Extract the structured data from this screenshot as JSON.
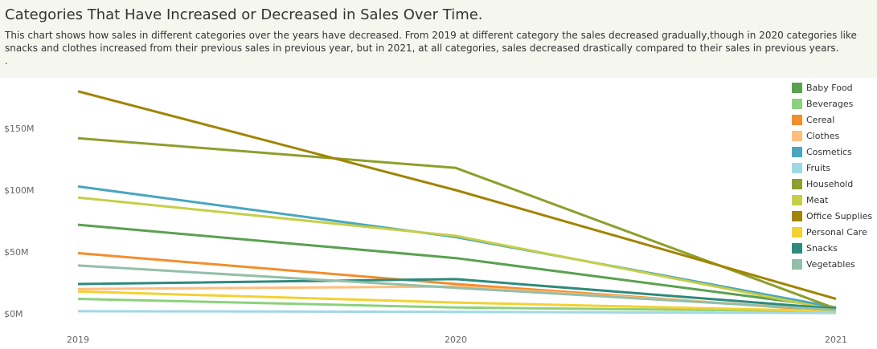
{
  "header": {
    "title": "Categories That Have Increased or Decreased in Sales Over Time.",
    "subtitle": "This chart shows how sales in different categories over the years have decreased. From 2019 at different category the sales decreased gradually,though in 2020 categories like snacks and clothes increased from their previous sales in previous year, but in 2021, at all categories, sales decreased drastically compared to their sales in previous years.",
    "note": "."
  },
  "chart_data": {
    "type": "line",
    "title": "Categories That Have Increased or Decreased in Sales Over Time.",
    "x": [
      "2019",
      "2020",
      "2021"
    ],
    "ylim": [
      0,
      180
    ],
    "yticks": [
      0,
      50,
      100,
      150
    ],
    "ytick_labels": [
      "$0M",
      "$50M",
      "$100M",
      "$150M"
    ],
    "grid": false,
    "legend": "right",
    "series": [
      {
        "name": "Baby Food",
        "color": "#59a14f",
        "values": [
          72,
          45,
          5
        ]
      },
      {
        "name": "Beverages",
        "color": "#8cd17d",
        "values": [
          12,
          5,
          2
        ]
      },
      {
        "name": "Cereal",
        "color": "#f28e2b",
        "values": [
          49,
          24,
          2
        ]
      },
      {
        "name": "Clothes",
        "color": "#ffbe7d",
        "values": [
          20,
          22,
          3
        ]
      },
      {
        "name": "Cosmetics",
        "color": "#499894",
        "values": [
          103,
          62,
          5
        ],
        "display_color": "#4aa6bf"
      },
      {
        "name": "Fruits",
        "color": "#a0d8e8",
        "values": [
          2,
          1.5,
          0.5
        ]
      },
      {
        "name": "Household",
        "color": "#8f9e2d",
        "values": [
          142,
          118,
          4
        ]
      },
      {
        "name": "Meat",
        "color": "#c5cf48",
        "values": [
          94,
          63,
          3
        ]
      },
      {
        "name": "Office Supplies",
        "color": "#a18405",
        "values": [
          180,
          100,
          12
        ]
      },
      {
        "name": "Personal Care",
        "color": "#f3d132",
        "values": [
          18,
          9,
          2
        ]
      },
      {
        "name": "Snacks",
        "color": "#2e8a7d",
        "values": [
          24,
          28,
          4
        ]
      },
      {
        "name": "Vegetables",
        "color": "#93bfa8",
        "values": [
          39,
          21,
          3
        ]
      }
    ]
  }
}
